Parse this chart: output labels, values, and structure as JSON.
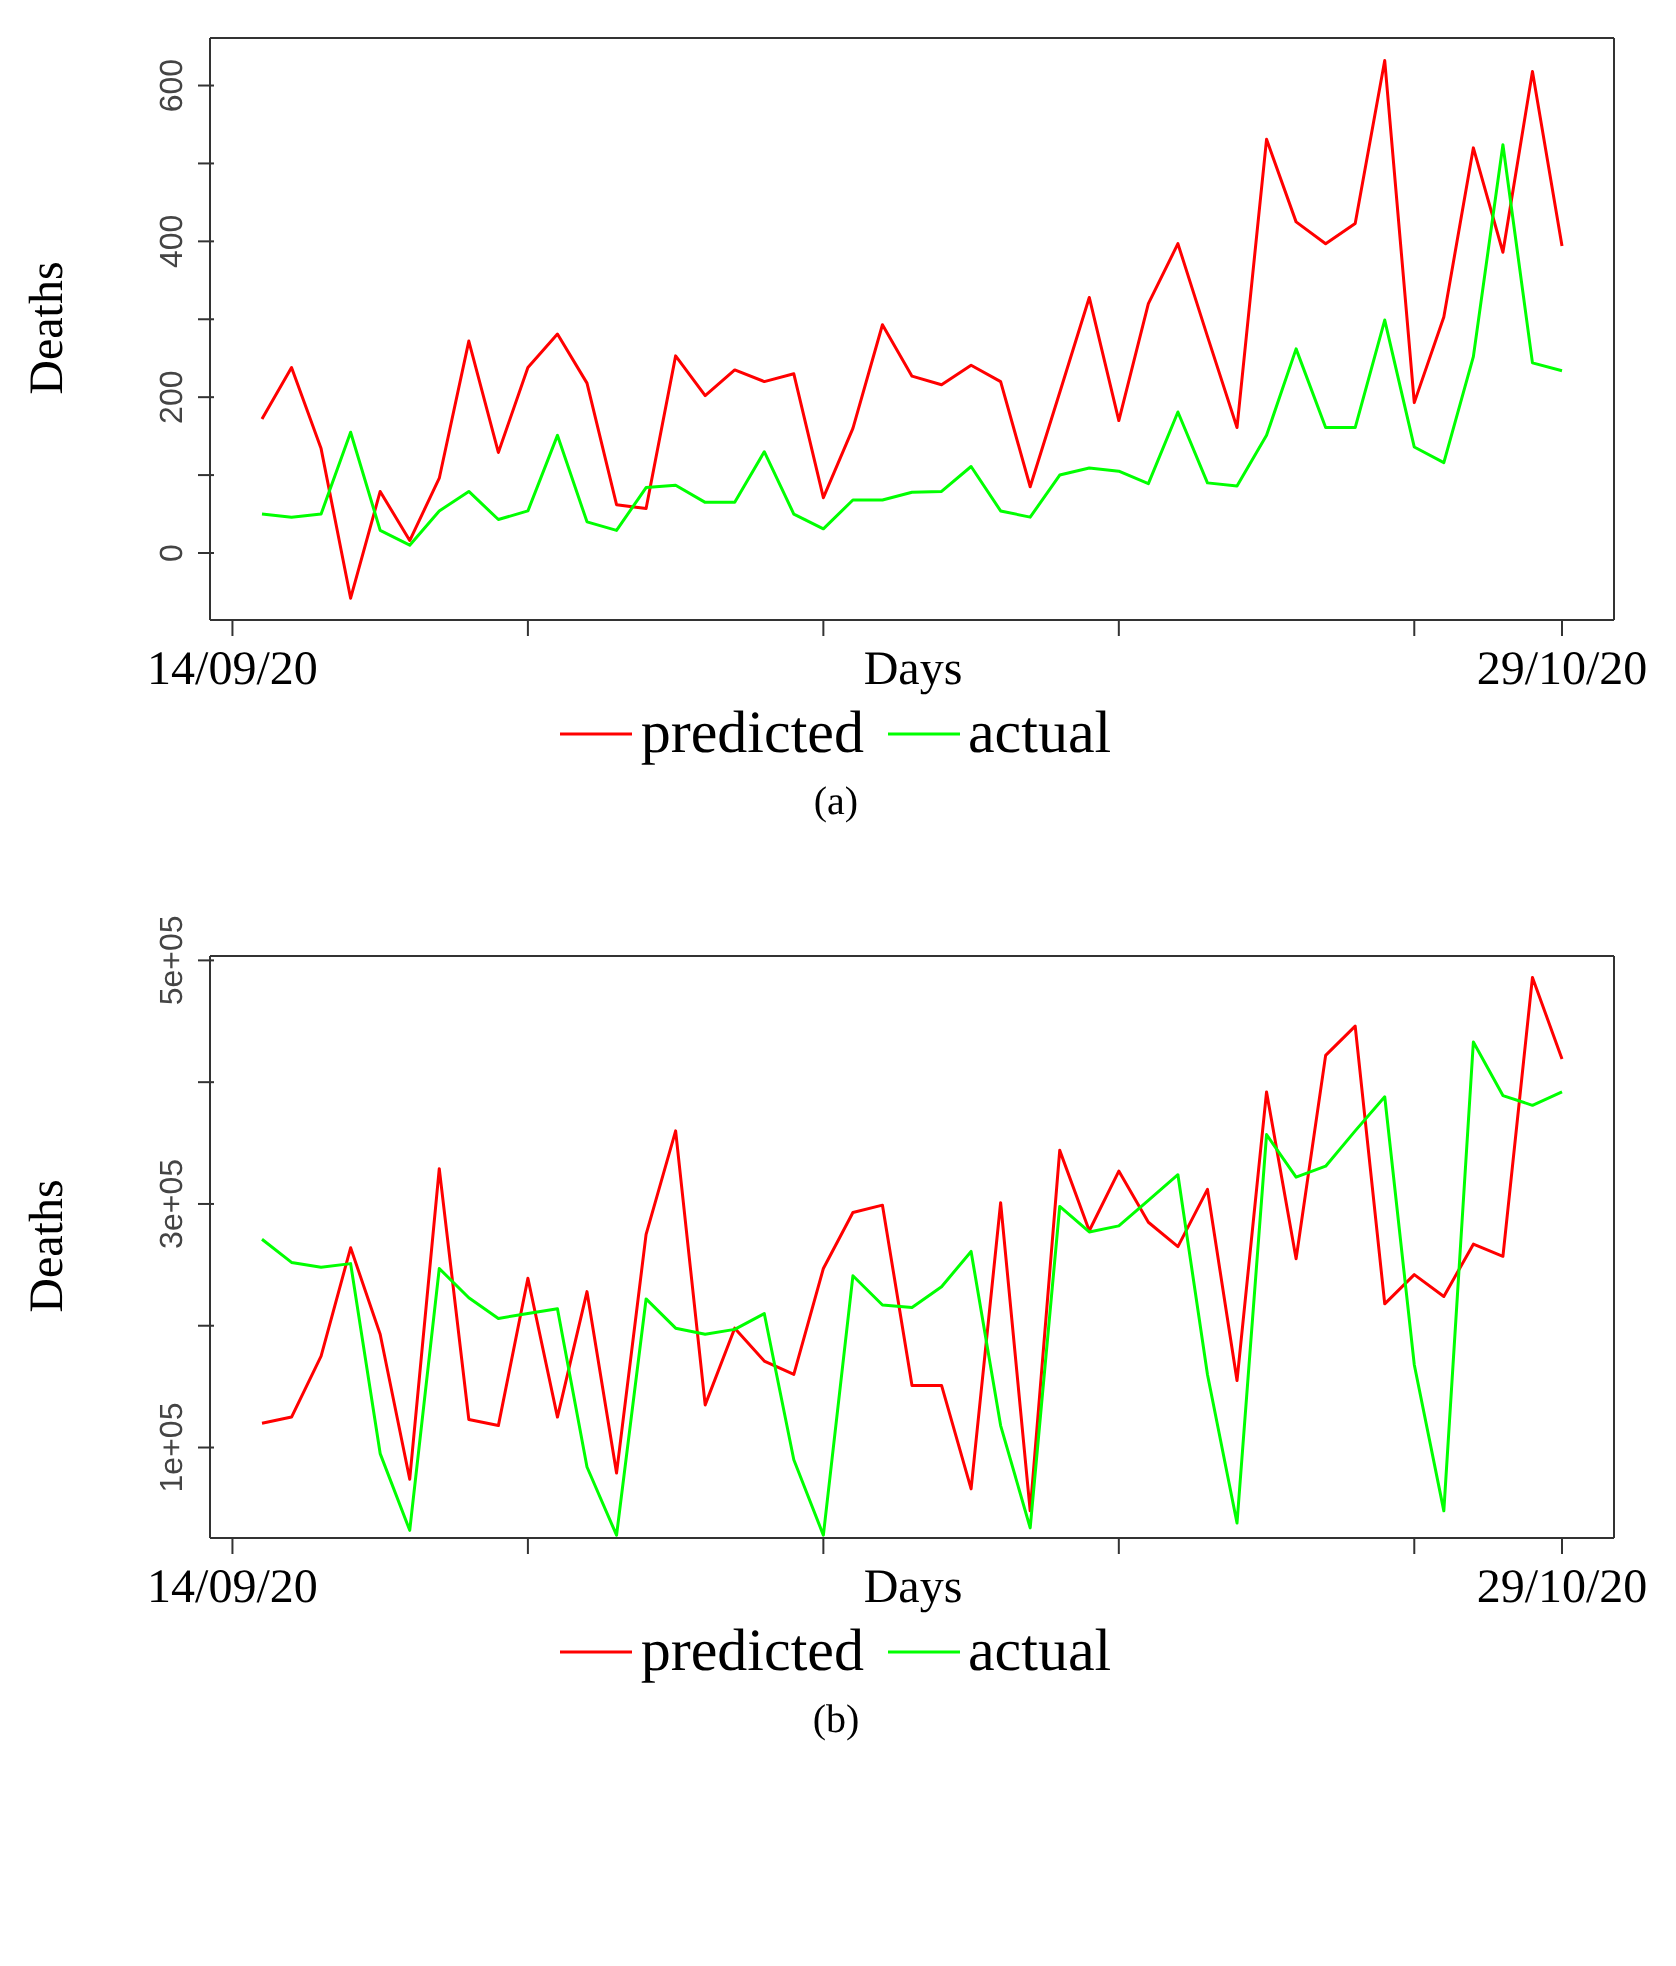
{
  "chart_data": [
    {
      "type": "line",
      "xlabel": "Days",
      "ylabel": "Deaths",
      "x": [
        "--09-15",
        "--09-16",
        "--09-17",
        "--09-18",
        "--09-19",
        "--09-20",
        "--09-21",
        "--09-22",
        "--09-23",
        "--09-24",
        "--09-25",
        "--09-26",
        "--09-27",
        "--09-28",
        "--09-29",
        "--09-30",
        "--10-01",
        "--10-02",
        "--10-03",
        "--10-04",
        "--10-05",
        "--10-06",
        "--10-07",
        "--10-08",
        "--10-09",
        "--10-10",
        "--10-11",
        "--10-12",
        "--10-13",
        "--10-14",
        "--10-15",
        "--10-16",
        "--10-17",
        "--10-18",
        "--10-19",
        "--10-20",
        "--10-21",
        "--10-22",
        "--10-23",
        "--10-24",
        "--10-25",
        "--10-26",
        "--10-27",
        "--10-28",
        "--10-29"
      ],
      "series": [
        {
          "name": "predicted",
          "color": "#ff0000",
          "values": [
            172,
            238,
            134,
            -58,
            79,
            16,
            96,
            272,
            129,
            238,
            281,
            218,
            62,
            57,
            253,
            202,
            235,
            220,
            230,
            71,
            160,
            293,
            227,
            216,
            241,
            220,
            85,
            206,
            328,
            170,
            320,
            397,
            278,
            161,
            531,
            425,
            397,
            423,
            632,
            193,
            303,
            520,
            386,
            618,
            394
          ]
        },
        {
          "name": "actual",
          "color": "#00ff00",
          "values": [
            50,
            46,
            50,
            155,
            29,
            10,
            54,
            79,
            43,
            54,
            151,
            40,
            29,
            84,
            87,
            65,
            65,
            130,
            50,
            31,
            68,
            68,
            78,
            79,
            111,
            54,
            46,
            100,
            109,
            105,
            89,
            181,
            90,
            86,
            151,
            262,
            161,
            161,
            299,
            136,
            116,
            252,
            524,
            244,
            234
          ]
        }
      ],
      "xlim": [
        "--09-13T05:46",
        "--10-30T18:14"
      ],
      "xticks": [
        {
          "value": "--09-14",
          "label": "14/09/20"
        },
        {
          "value": "--09-24",
          "label": null
        },
        {
          "value": "--10-04",
          "label": null
        },
        {
          "value": "--10-14",
          "label": null
        },
        {
          "value": "--10-24",
          "label": null
        },
        {
          "value": "--10-29",
          "label": "29/10/20"
        }
      ],
      "ylim": [
        -86,
        661
      ],
      "yticks": [
        0,
        {
          "value": 100,
          "label": null
        },
        200,
        {
          "value": 300,
          "label": null
        },
        400,
        {
          "value": 500,
          "label": null
        },
        600
      ],
      "grid": false,
      "legend": "bottom",
      "annotations": [
        "(a)"
      ]
    },
    {
      "type": "line",
      "xlabel": "Days",
      "ylabel": "Deaths",
      "x": [
        "--09-15",
        "--09-16",
        "--09-17",
        "--09-18",
        "--09-19",
        "--09-20",
        "--09-21",
        "--09-22",
        "--09-23",
        "--09-24",
        "--09-25",
        "--09-26",
        "--09-27",
        "--09-28",
        "--09-29",
        "--09-30",
        "--10-01",
        "--10-02",
        "--10-03",
        "--10-04",
        "--10-05",
        "--10-06",
        "--10-07",
        "--10-08",
        "--10-09",
        "--10-10",
        "--10-11",
        "--10-12",
        "--10-13",
        "--10-14",
        "--10-15",
        "--10-16",
        "--10-17",
        "--10-18",
        "--10-19",
        "--10-20",
        "--10-21",
        "--10-22",
        "--10-23",
        "--10-24",
        "--10-25",
        "--10-26",
        "--10-27",
        "--10-28",
        "--10-29"
      ],
      "series": [
        {
          "name": "predicted",
          "color": "#ff0000",
          "values": [
            120000,
            125000,
            175000,
            264000,
            193000,
            74000,
            329000,
            123000,
            118000,
            239000,
            125000,
            228000,
            79000,
            275000,
            360000,
            135000,
            198000,
            171000,
            160000,
            247000,
            293000,
            299000,
            151000,
            151000,
            66000,
            301000,
            48000,
            344000,
            278000,
            327000,
            285000,
            265000,
            312000,
            155000,
            392000,
            255000,
            422000,
            446000,
            218000,
            242000,
            224000,
            267000,
            257000,
            486000,
            419000
          ]
        },
        {
          "name": "actual",
          "color": "#00ff00",
          "values": [
            271000,
            252000,
            248000,
            251000,
            95000,
            32000,
            247000,
            223000,
            206000,
            210000,
            214000,
            84000,
            28000,
            222000,
            198000,
            193000,
            197000,
            210000,
            90000,
            28000,
            241000,
            217000,
            215000,
            232000,
            261000,
            118000,
            34000,
            298000,
            277000,
            282000,
            303000,
            324000,
            160000,
            38000,
            357000,
            322000,
            331000,
            360000,
            388000,
            168000,
            48000,
            433000,
            389000,
            381000,
            392000
          ]
        }
      ],
      "xlim": [
        "--09-13T05:46",
        "--10-30T18:14"
      ],
      "xticks": [
        {
          "value": "--09-14",
          "label": "14/09/20"
        },
        {
          "value": "--09-24",
          "label": null
        },
        {
          "value": "--10-04",
          "label": null
        },
        {
          "value": "--10-14",
          "label": null
        },
        {
          "value": "--10-24",
          "label": null
        },
        {
          "value": "--10-29",
          "label": "29/10/20"
        }
      ],
      "ylim": [
        25700,
        503600
      ],
      "yticks": [
        {
          "value": 100000,
          "label": "1e+05"
        },
        {
          "value": 200000,
          "label": null
        },
        {
          "value": 300000,
          "label": "3e+05"
        },
        {
          "value": 400000,
          "label": null
        },
        {
          "value": 500000,
          "label": "5e+05"
        }
      ],
      "grid": false,
      "legend": "bottom",
      "annotations": [
        "(b)"
      ]
    }
  ]
}
